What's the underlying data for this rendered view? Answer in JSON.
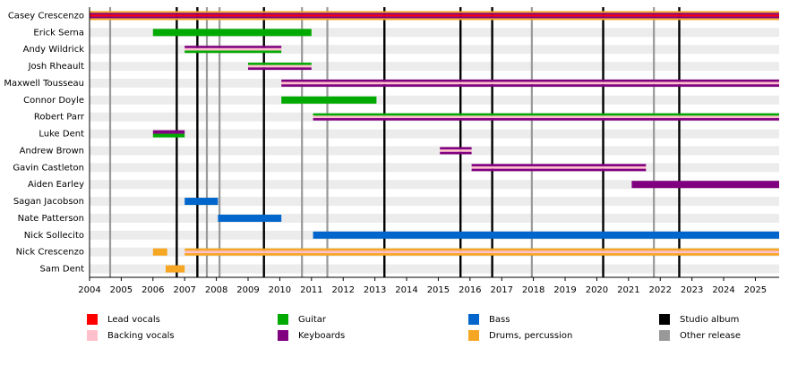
{
  "chart_data": {
    "type": "timeline",
    "xlim": [
      2004,
      2025.75
    ],
    "xticks": [
      2004,
      2005,
      2006,
      2007,
      2008,
      2009,
      2010,
      2011,
      2012,
      2013,
      2014,
      2015,
      2016,
      2017,
      2018,
      2019,
      2020,
      2021,
      2022,
      2023,
      2024,
      2025
    ],
    "legend": [
      {
        "name": "Lead vocals",
        "color": "#ff0000"
      },
      {
        "name": "Backing vocals",
        "color": "#ffc0cb"
      },
      {
        "name": "Guitar",
        "color": "#00aa00"
      },
      {
        "name": "Keyboards",
        "color": "#800080"
      },
      {
        "name": "Bass",
        "color": "#0066cc"
      },
      {
        "name": "Drums, percussion",
        "color": "#f5a623"
      },
      {
        "name": "Studio album",
        "color": "#000000"
      },
      {
        "name": "Other release",
        "color": "#999999"
      }
    ],
    "studio_albums": [
      2006.75,
      2007.4,
      2009.5,
      2013.3,
      2015.7,
      2016.7,
      2020.2,
      2022.6
    ],
    "other_releases": [
      2004.65,
      2007.7,
      2008.1,
      2010.7,
      2011.5,
      2017.95,
      2021.8
    ],
    "members": [
      {
        "name": "Casey Crescenzo",
        "periods": [
          {
            "start": 2004,
            "end": 2025.75,
            "roles": [
              "Drums, percussion",
              "Keyboards",
              "Lead vocals",
              "Keyboards",
              "Drums, percussion"
            ]
          }
        ]
      },
      {
        "name": "Erick Serna",
        "periods": [
          {
            "start": 2006,
            "end": 2011,
            "roles": [
              "Guitar"
            ]
          }
        ]
      },
      {
        "name": "Andy Wildrick",
        "periods": [
          {
            "start": 2007,
            "end": 2010.05,
            "roles": [
              "Keyboards",
              "Backing vocals",
              "Guitar"
            ]
          }
        ]
      },
      {
        "name": "Josh Rheault",
        "periods": [
          {
            "start": 2009,
            "end": 2011,
            "roles": [
              "Guitar",
              "Backing vocals",
              "Keyboards"
            ]
          }
        ]
      },
      {
        "name": "Maxwell Tousseau",
        "periods": [
          {
            "start": 2010.05,
            "end": 2025.75,
            "roles": [
              "Keyboards",
              "Backing vocals",
              "Keyboards"
            ]
          }
        ]
      },
      {
        "name": "Connor Doyle",
        "periods": [
          {
            "start": 2010.05,
            "end": 2013.05,
            "roles": [
              "Guitar"
            ]
          }
        ]
      },
      {
        "name": "Robert Parr",
        "periods": [
          {
            "start": 2011.05,
            "end": 2025.75,
            "roles": [
              "Guitar",
              "Backing vocals",
              "Keyboards"
            ]
          }
        ]
      },
      {
        "name": "Luke Dent",
        "periods": [
          {
            "start": 2006,
            "end": 2007,
            "roles": [
              "Keyboards",
              "Guitar"
            ]
          }
        ]
      },
      {
        "name": "Andrew Brown",
        "periods": [
          {
            "start": 2015.05,
            "end": 2016.05,
            "roles": [
              "Keyboards",
              "Backing vocals",
              "Keyboards"
            ]
          }
        ]
      },
      {
        "name": "Gavin Castleton",
        "periods": [
          {
            "start": 2016.05,
            "end": 2021.55,
            "roles": [
              "Keyboards",
              "Backing vocals",
              "Keyboards"
            ]
          }
        ]
      },
      {
        "name": "Aiden Earley",
        "periods": [
          {
            "start": 2021.1,
            "end": 2025.75,
            "roles": [
              "Keyboards"
            ]
          }
        ]
      },
      {
        "name": "Sagan Jacobson",
        "periods": [
          {
            "start": 2007,
            "end": 2008.05,
            "roles": [
              "Bass"
            ]
          }
        ]
      },
      {
        "name": "Nate Patterson",
        "periods": [
          {
            "start": 2008.05,
            "end": 2010.05,
            "roles": [
              "Bass"
            ]
          }
        ]
      },
      {
        "name": "Nick Sollecito",
        "periods": [
          {
            "start": 2011.05,
            "end": 2025.75,
            "roles": [
              "Bass"
            ]
          }
        ]
      },
      {
        "name": "Nick Crescenzo",
        "periods": [
          {
            "start": 2006,
            "end": 2006.45,
            "roles": [
              "Drums, percussion"
            ]
          },
          {
            "start": 2007,
            "end": 2025.75,
            "roles": [
              "Drums, percussion",
              "Backing vocals",
              "Drums, percussion"
            ]
          }
        ]
      },
      {
        "name": "Sam Dent",
        "periods": [
          {
            "start": 2006.4,
            "end": 2007,
            "roles": [
              "Drums, percussion"
            ]
          }
        ]
      }
    ]
  }
}
